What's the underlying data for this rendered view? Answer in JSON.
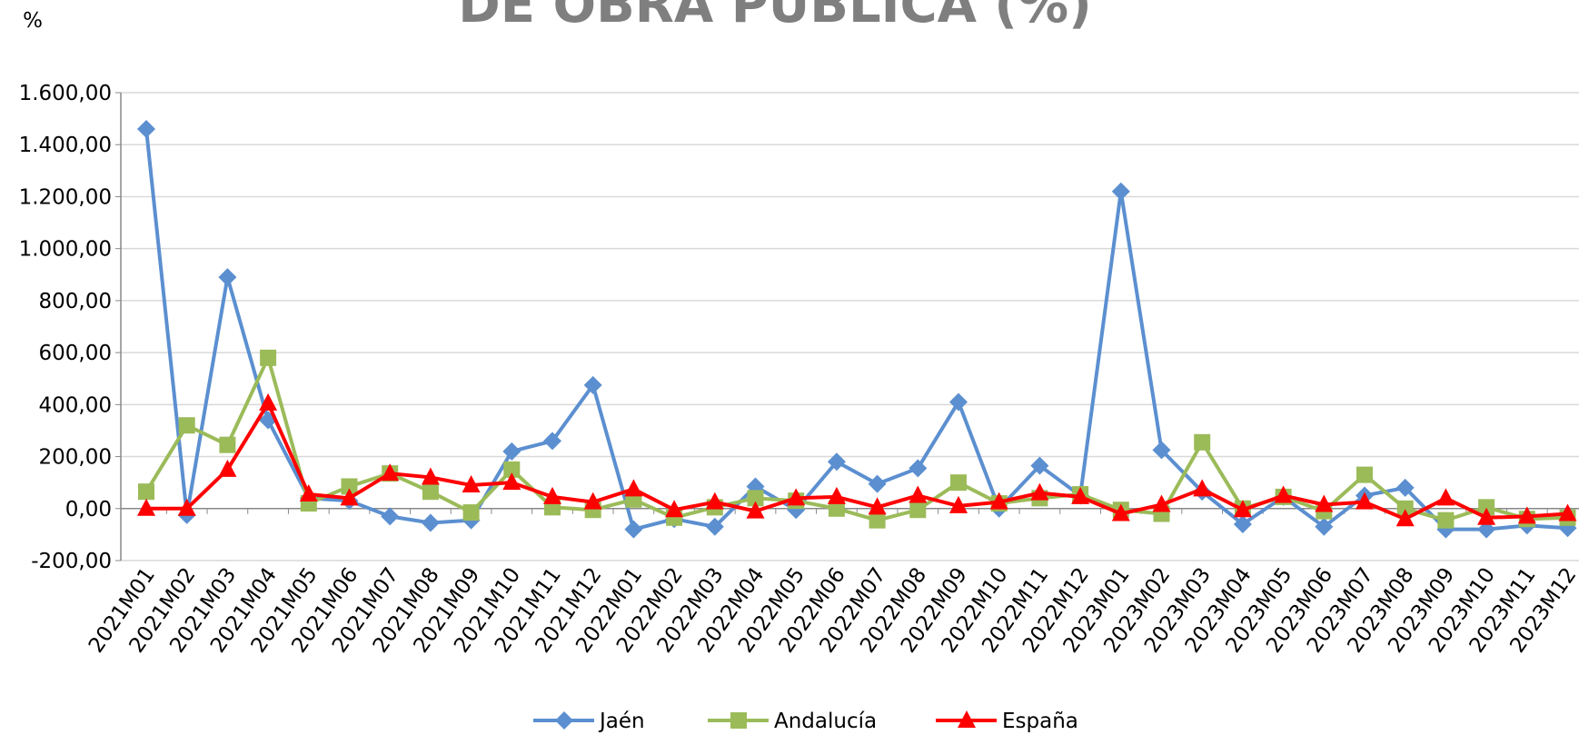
{
  "chart_data": {
    "type": "line",
    "title": "DE OBRA PÚBLICA (%)",
    "y_unit": "%",
    "categories": [
      "2021M01",
      "2021M02",
      "2021M03",
      "2021M04",
      "2021M05",
      "2021M06",
      "2021M07",
      "2021M08",
      "2021M09",
      "2021M10",
      "2021M11",
      "2021M12",
      "2022M01",
      "2022M02",
      "2022M03",
      "2022M04",
      "2022M05",
      "2022M06",
      "2022M07",
      "2022M08",
      "2022M09",
      "2022M10",
      "2022M11",
      "2022M12",
      "2023M01",
      "2023M02",
      "2023M03",
      "2023M04",
      "2023M05",
      "2023M06",
      "2023M07",
      "2023M08",
      "2023M09",
      "2023M10",
      "2023M11",
      "2023M12"
    ],
    "series": [
      {
        "name": "Jaén",
        "color": "#5b8fd0",
        "marker": "diamond",
        "values": [
          1460,
          -25,
          890,
          340,
          40,
          30,
          -30,
          -55,
          -45,
          220,
          260,
          475,
          -80,
          -40,
          -70,
          85,
          -5,
          180,
          95,
          155,
          410,
          0,
          165,
          50,
          1220,
          225,
          65,
          -60,
          45,
          -70,
          50,
          80,
          -80,
          -80,
          -65,
          -75
        ]
      },
      {
        "name": "Andalucía",
        "color": "#9bbb59",
        "marker": "square",
        "values": [
          65,
          320,
          245,
          580,
          20,
          85,
          135,
          65,
          -15,
          150,
          5,
          -5,
          35,
          -35,
          5,
          40,
          30,
          0,
          -45,
          -5,
          100,
          20,
          40,
          55,
          -5,
          -20,
          255,
          0,
          45,
          -10,
          130,
          0,
          -45,
          5,
          -40,
          -35
        ]
      },
      {
        "name": "España",
        "color": "#ff0000",
        "marker": "triangle",
        "values": [
          0,
          0,
          150,
          405,
          55,
          40,
          135,
          120,
          90,
          100,
          45,
          25,
          75,
          -5,
          25,
          -10,
          40,
          45,
          5,
          50,
          10,
          25,
          60,
          45,
          -20,
          15,
          75,
          -5,
          50,
          15,
          25,
          -40,
          40,
          -35,
          -30,
          -20
        ]
      }
    ],
    "ylim": [
      -200,
      1600
    ],
    "yticks": [
      {
        "value": -200,
        "label": "-200,00"
      },
      {
        "value": 0,
        "label": "0,00"
      },
      {
        "value": 200,
        "label": "200,00"
      },
      {
        "value": 400,
        "label": "400,00"
      },
      {
        "value": 600,
        "label": "600,00"
      },
      {
        "value": 800,
        "label": "800,00"
      },
      {
        "value": 1000,
        "label": "1.000,00"
      },
      {
        "value": 1200,
        "label": "1.200,00"
      },
      {
        "value": 1400,
        "label": "1.400,00"
      },
      {
        "value": 1600,
        "label": "1.600,00"
      }
    ],
    "grid": true,
    "legend": "bottom"
  }
}
